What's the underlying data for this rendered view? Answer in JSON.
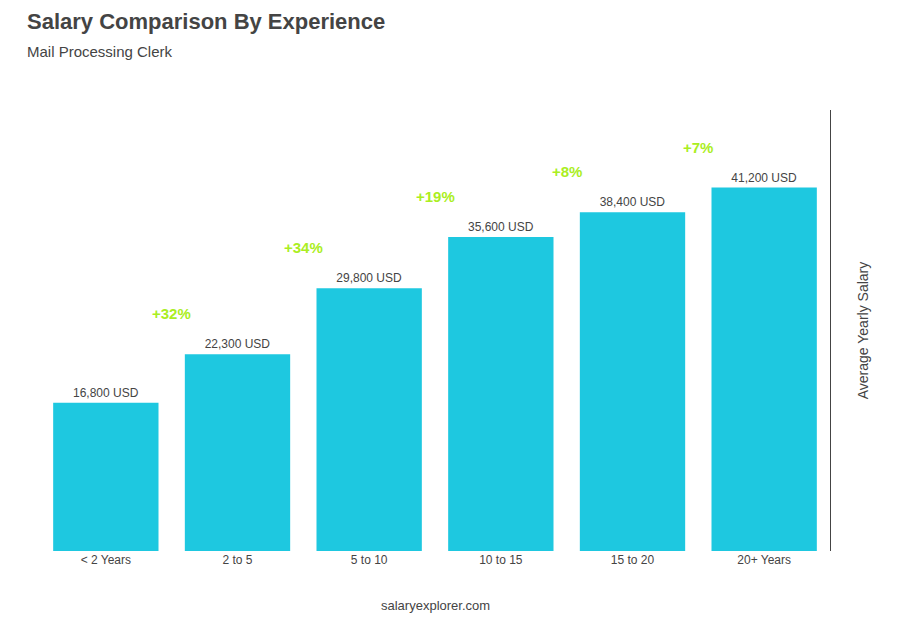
{
  "chart_data": {
    "type": "bar",
    "title": "Salary Comparison By Experience",
    "subtitle": "Mail Processing Clerk",
    "categories": [
      "< 2 Years",
      "2 to 5",
      "5 to 10",
      "10 to 15",
      "15 to 20",
      "20+ Years"
    ],
    "values": [
      16800,
      22300,
      29800,
      35600,
      38400,
      41200
    ],
    "value_labels": [
      "16,800 USD",
      "22,300 USD",
      "29,800 USD",
      "35,600 USD",
      "38,400 USD",
      "41,200 USD"
    ],
    "data_labels": true,
    "color": "#1ec8e0",
    "ylabel": "Average Yearly Salary",
    "ylim": [
      0,
      50000
    ],
    "tick_labels": "x",
    "grid": false,
    "annotations": [
      {
        "text": "+32%",
        "from": "< 2 Years",
        "to": "2 to 5",
        "color": "#aaee22"
      },
      {
        "text": "+34%",
        "from": "2 to 5",
        "to": "5 to 10",
        "color": "#aaee22"
      },
      {
        "text": "+19%",
        "from": "5 to 10",
        "to": "10 to 15",
        "color": "#aaee22"
      },
      {
        "text": "+8%",
        "from": "10 to 15",
        "to": "15 to 20",
        "color": "#aaee22"
      },
      {
        "text": "+7%",
        "from": "15 to 20",
        "to": "20+ Years",
        "color": "#aaee22"
      }
    ],
    "footer": "salaryexplorer.com"
  }
}
